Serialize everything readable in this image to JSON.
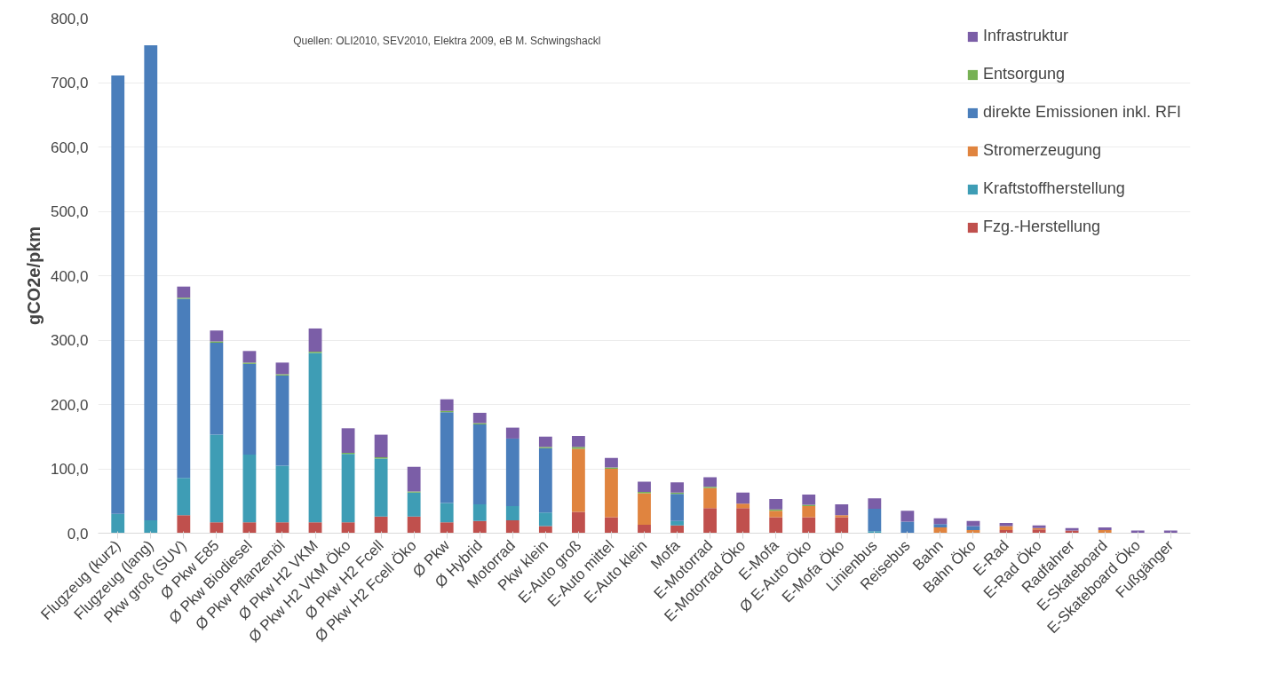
{
  "chart_data": {
    "type": "bar",
    "stacked": true,
    "ylabel": "gCO2e/pkm",
    "annotations": [
      "Quellen: OLI2010, SEV2010, Elektra 2009, eB M. Schwingshackl"
    ],
    "categories": [
      "Flugzeug (kurz)",
      "Flugzeug (lang)",
      "Pkw groß (SUV)",
      "Ø Pkw E85",
      "Ø Pkw Biodiesel",
      "Ø Pkw Pflanzenöl",
      "Ø Pkw H2 VKM",
      "Ø Pkw H2 VKM Öko",
      "Ø Pkw H2 Fcell",
      "Ø Pkw H2 Fcell Öko",
      "Ø Pkw",
      "Ø Hybrid",
      "Motorrad",
      "Pkw klein",
      "E-Auto groß",
      "E-Auto mittel",
      "E-Auto klein",
      "Mofa",
      "E-Motorrad",
      "E-Motorrad Öko",
      "E-Mofa",
      "Ø E-Auto Öko",
      "E-Mofa Öko",
      "Linienbus",
      "Reisebus",
      "Bahn",
      "Bahn Öko",
      "E-Rad",
      "E-Rad Öko",
      "Radfahrer",
      "E-Skateboard",
      "E-Skateboard Öko",
      "Fußgänger"
    ],
    "series": [
      {
        "name": "Fzg.-Herstellung",
        "color": "#c0504d",
        "values": [
          0,
          0,
          28,
          17,
          17,
          17,
          17,
          17,
          26,
          26,
          17,
          19,
          20,
          11,
          33,
          25,
          13,
          12,
          39,
          39,
          25,
          25,
          25,
          0,
          0,
          0,
          0,
          5,
          6,
          4,
          0,
          null,
          0
        ]
      },
      {
        "name": "Kraftstoffherstellung",
        "color": "#3e9db5",
        "values": [
          30,
          20,
          58,
          136,
          105,
          88,
          263,
          106,
          90,
          37,
          30,
          26,
          22,
          21,
          0,
          0,
          0,
          7,
          0,
          0,
          0,
          0,
          0,
          3,
          null,
          0,
          0,
          0,
          0,
          0,
          0,
          0,
          0
        ]
      },
      {
        "name": "Stromerzeugung",
        "color": "#e0843f",
        "values": [
          0,
          0,
          0,
          0,
          0,
          0,
          0,
          0,
          0,
          0,
          0,
          0,
          0,
          0,
          98,
          75,
          49,
          0,
          31,
          7,
          10,
          17,
          3,
          0,
          0,
          9,
          5,
          6,
          2,
          0,
          5,
          0,
          0
        ]
      },
      {
        "name": "direkte Emissionen inkl. RFI",
        "color": "#4a7ebb",
        "values": [
          681,
          738,
          278,
          143,
          141,
          140,
          0,
          0,
          0,
          0,
          141,
          124,
          105,
          100,
          0,
          0,
          0,
          42,
          0,
          0,
          0,
          0,
          0,
          35,
          18,
          5,
          6,
          0,
          0,
          0,
          0,
          0,
          0
        ]
      },
      {
        "name": "Entsorgung",
        "color": "#77b155",
        "values": [
          0,
          0,
          2,
          2,
          2,
          2,
          2,
          2,
          2,
          2,
          2,
          2,
          null,
          2,
          3,
          2,
          2,
          2,
          2,
          null,
          2,
          2,
          null,
          0,
          0,
          0,
          0,
          0,
          0,
          0,
          0,
          0,
          0
        ]
      },
      {
        "name": "Infrastruktur",
        "color": "#7b5ea7",
        "values": [
          0,
          0,
          17,
          17,
          18,
          18,
          36,
          38,
          35,
          38,
          18,
          16,
          17,
          16,
          17,
          15,
          16,
          16,
          15,
          17,
          16,
          16,
          17,
          16,
          17,
          9,
          8,
          5,
          4,
          4,
          4,
          4,
          4
        ]
      }
    ],
    "ylim": [
      0,
      800
    ],
    "yticks": [
      {
        "value": 0,
        "label": "0,0"
      },
      {
        "value": 100,
        "label": "100,0"
      },
      {
        "value": 200,
        "label": "200,0"
      },
      {
        "value": 300,
        "label": "300,0"
      },
      {
        "value": 400,
        "label": "400,0"
      },
      {
        "value": 500,
        "label": "500,0"
      },
      {
        "value": 600,
        "label": "600,0"
      },
      {
        "value": 700,
        "label": "700,0"
      },
      {
        "value": 800,
        "label": "800,0"
      }
    ],
    "grid": "y",
    "legend": "top right"
  }
}
